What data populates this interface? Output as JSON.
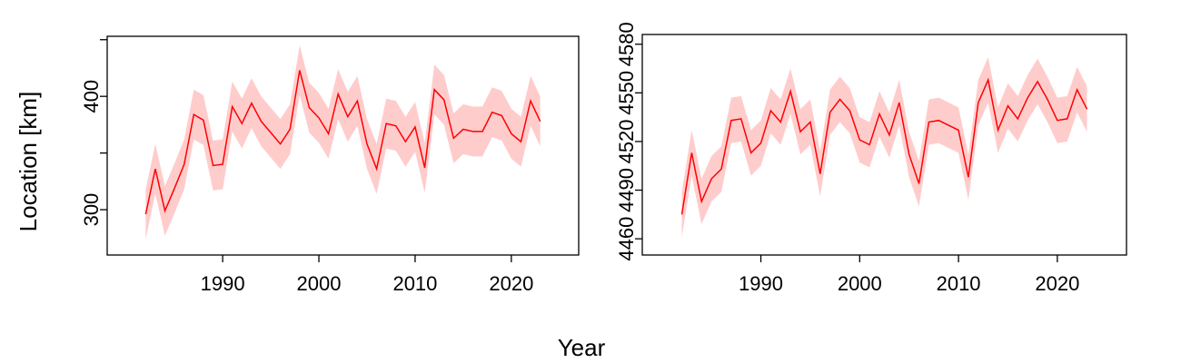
{
  "x_label": "Year",
  "chart_data": [
    {
      "type": "line",
      "y_label": "Location [km]",
      "x": [
        1982,
        1983,
        1984,
        1985,
        1986,
        1987,
        1988,
        1989,
        1990,
        1991,
        1992,
        1993,
        1994,
        1995,
        1996,
        1997,
        1998,
        1999,
        2000,
        2001,
        2002,
        2003,
        2004,
        2005,
        2006,
        2007,
        2008,
        2009,
        2010,
        2011,
        2012,
        2013,
        2014,
        2015,
        2016,
        2017,
        2018,
        2019,
        2020,
        2021,
        2022,
        2023
      ],
      "series": [
        {
          "color": "#ff0000",
          "band_color": "#ffcccc",
          "values": [
            296,
            336,
            299,
            319,
            340,
            384,
            379,
            339,
            340,
            391,
            376,
            394,
            378,
            368,
            358,
            371,
            423,
            390,
            381,
            367,
            402,
            382,
            396,
            358,
            336,
            376,
            374,
            360,
            373,
            337,
            406,
            397,
            363,
            371,
            369,
            369,
            386,
            383,
            367,
            360,
            396,
            378
          ],
          "lower": [
            274,
            314,
            277,
            297,
            318,
            362,
            357,
            317,
            318,
            369,
            354,
            372,
            356,
            346,
            336,
            349,
            401,
            368,
            359,
            345,
            380,
            360,
            374,
            336,
            314,
            354,
            352,
            338,
            351,
            315,
            384,
            375,
            341,
            349,
            347,
            347,
            364,
            361,
            345,
            338,
            374,
            356
          ],
          "upper": [
            318,
            358,
            321,
            341,
            362,
            406,
            401,
            361,
            362,
            413,
            398,
            416,
            400,
            390,
            380,
            393,
            445,
            412,
            403,
            389,
            424,
            404,
            418,
            380,
            358,
            398,
            396,
            382,
            395,
            359,
            428,
            419,
            385,
            393,
            391,
            391,
            408,
            405,
            389,
            382,
            418,
            400
          ]
        }
      ],
      "xlim": [
        1978,
        2027
      ],
      "xticks": [
        1990,
        2000,
        2010,
        2020
      ],
      "ylim": [
        260,
        453
      ],
      "yticks": [
        300,
        {
          "value": 350,
          "label": null
        },
        400,
        {
          "value": 450,
          "label": null
        }
      ]
    },
    {
      "type": "line",
      "x": [
        1982,
        1983,
        1984,
        1985,
        1986,
        1987,
        1988,
        1989,
        1990,
        1991,
        1992,
        1993,
        1994,
        1995,
        1996,
        1997,
        1998,
        1999,
        2000,
        2001,
        2002,
        2003,
        2004,
        2005,
        2006,
        2007,
        2008,
        2009,
        2010,
        2011,
        2012,
        2013,
        2014,
        2015,
        2016,
        2017,
        2018,
        2019,
        2020,
        2021,
        2022,
        2023
      ],
      "series": [
        {
          "color": "#ff0000",
          "band_color": "#ffcccc",
          "values": [
            4475,
            4513,
            4483,
            4497,
            4503,
            4533,
            4534,
            4513,
            4519,
            4539,
            4532,
            4551,
            4526,
            4532,
            4500,
            4538,
            4546,
            4539,
            4521,
            4518,
            4537,
            4524,
            4544,
            4512,
            4494,
            4532,
            4533,
            4530,
            4527,
            4498,
            4544,
            4558,
            4527,
            4542,
            4534,
            4547,
            4557,
            4546,
            4533,
            4534,
            4552,
            4540
          ],
          "lower": [
            4461,
            4499,
            4469,
            4483,
            4489,
            4519,
            4520,
            4499,
            4505,
            4525,
            4518,
            4537,
            4512,
            4518,
            4486,
            4524,
            4532,
            4525,
            4507,
            4504,
            4523,
            4510,
            4530,
            4498,
            4480,
            4518,
            4519,
            4516,
            4513,
            4484,
            4530,
            4544,
            4513,
            4528,
            4520,
            4533,
            4543,
            4532,
            4519,
            4520,
            4538,
            4526
          ],
          "upper": [
            4489,
            4527,
            4497,
            4511,
            4517,
            4547,
            4548,
            4527,
            4533,
            4553,
            4546,
            4565,
            4540,
            4546,
            4514,
            4552,
            4560,
            4553,
            4535,
            4532,
            4551,
            4538,
            4558,
            4526,
            4508,
            4546,
            4547,
            4544,
            4541,
            4512,
            4558,
            4572,
            4541,
            4556,
            4548,
            4561,
            4571,
            4560,
            4547,
            4548,
            4566,
            4554
          ]
        }
      ],
      "xlim": [
        1978,
        2027
      ],
      "xticks": [
        1990,
        2000,
        2010,
        2020
      ],
      "ylim": [
        4450,
        4586
      ],
      "yticks": [
        4460,
        4490,
        4520,
        4550,
        4580
      ]
    }
  ]
}
